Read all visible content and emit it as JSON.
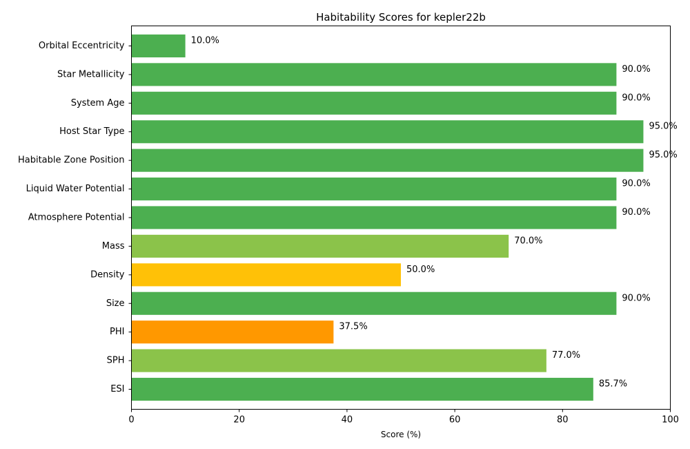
{
  "chart_data": {
    "type": "bar",
    "orientation": "horizontal",
    "title": "Habitability Scores for kepler22b",
    "xlabel": "Score (%)",
    "ylabel": "",
    "xlim": [
      0,
      100
    ],
    "xticks": [
      0,
      20,
      40,
      60,
      80,
      100
    ],
    "grid": false,
    "categories": [
      "ESI",
      "SPH",
      "PHI",
      "Size",
      "Density",
      "Mass",
      "Atmosphere Potential",
      "Liquid Water Potential",
      "Habitable Zone Position",
      "Host Star Type",
      "System Age",
      "Star Metallicity",
      "Orbital Eccentricity"
    ],
    "values": [
      85.7,
      77.0,
      37.5,
      90.0,
      50.0,
      70.0,
      90.0,
      90.0,
      95.0,
      95.0,
      90.0,
      90.0,
      10.0
    ],
    "value_labels": [
      "85.7%",
      "77.0%",
      "37.5%",
      "90.0%",
      "50.0%",
      "70.0%",
      "90.0%",
      "90.0%",
      "95.0%",
      "95.0%",
      "90.0%",
      "90.0%",
      "10.0%"
    ],
    "bar_colors": [
      "#4caf50",
      "#8bc34a",
      "#ff9800",
      "#4caf50",
      "#ffc107",
      "#8bc34a",
      "#4caf50",
      "#4caf50",
      "#4caf50",
      "#4caf50",
      "#4caf50",
      "#4caf50",
      "#4caf50"
    ]
  }
}
